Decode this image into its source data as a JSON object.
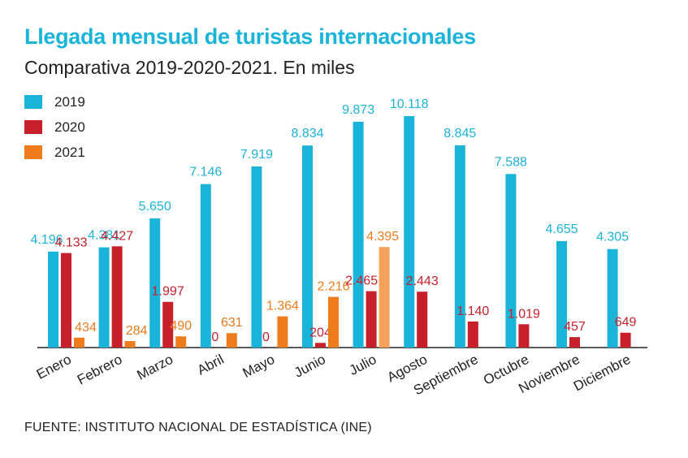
{
  "chart_data": {
    "type": "bar",
    "title": "Llegada mensual de turistas internacionales",
    "subtitle": "Comparativa 2019-2020-2021. En miles",
    "source": "FUENTE: INSTITUTO NACIONAL DE ESTADÍSTICA (INE)",
    "categories": [
      "Enero",
      "Febrero",
      "Marzo",
      "Abril",
      "Mayo",
      "Junio",
      "Julio",
      "Agosto",
      "Septiembre",
      "Octubre",
      "Noviembre",
      "Diciembre"
    ],
    "series": [
      {
        "name": "2019",
        "color": "#1ab3d9",
        "values": [
          4196,
          4381,
          5650,
          7146,
          7919,
          8834,
          9873,
          10118,
          8845,
          7588,
          4655,
          4305
        ],
        "labels": [
          "4.196",
          "4.381",
          "5.650",
          "7.146",
          "7.919",
          "8.834",
          "9.873",
          "10.118",
          "8.845",
          "7.588",
          "4.655",
          "4.305"
        ]
      },
      {
        "name": "2020",
        "color": "#c8202b",
        "values": [
          4133,
          4427,
          1997,
          0,
          0,
          204,
          2465,
          2443,
          1140,
          1019,
          457,
          649
        ],
        "labels": [
          "4.133",
          "4.427",
          "1.997",
          "0",
          "0",
          "204",
          "2.465",
          "2.443",
          "1.140",
          "1.019",
          "457",
          "649"
        ]
      },
      {
        "name": "2021",
        "color": "#ee7b1c",
        "highlight_color": "#f4a15c",
        "values": [
          434,
          284,
          490,
          631,
          1364,
          2216,
          4395,
          null,
          null,
          null,
          null,
          null
        ],
        "labels": [
          "434",
          "284",
          "490",
          "631",
          "1.364",
          "2.216",
          "4.395",
          null,
          null,
          null,
          null,
          null
        ]
      }
    ],
    "ylim": [
      0,
      10118
    ],
    "grid": false,
    "legend_position": "top-left"
  }
}
